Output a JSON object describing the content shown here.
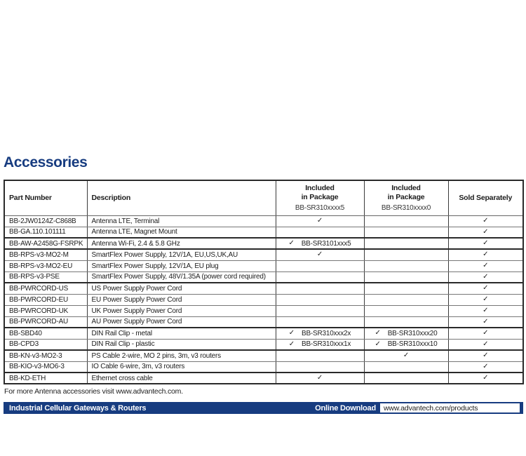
{
  "page": {
    "title": "Accessories",
    "footnote": "For more Antenna accessories visit www.advantech.com.",
    "colors": {
      "navy": "#173c80",
      "border_dark": "#2a2a2a",
      "border_light": "#777777"
    },
    "icons": {
      "check": "✓"
    }
  },
  "footer_bar": {
    "left_label": "Industrial Cellular Gateways & Routers",
    "download_label": "Online Download",
    "download_url": "www.advantech.com/products"
  },
  "table": {
    "headers": {
      "part_number": "Part Number",
      "description": "Description",
      "included1_line1": "Included",
      "included1_line2": "in Package",
      "included1_model": "BB-SR310xxxx5",
      "included2_line1": "Included",
      "included2_line2": "in Package",
      "included2_model": "BB-SR310xxxx0",
      "sold_separately": "Sold Separately"
    },
    "rows": [
      {
        "part": "BB-2JW0124Z-C868B",
        "desc": "Antenna LTE, Terminal",
        "pkg5_check": true,
        "pkg5_label": "",
        "pkg0_check": false,
        "pkg0_label": "",
        "sold_check": true,
        "group_end": false
      },
      {
        "part": "BB-GA.110.101111",
        "desc": "Antenna LTE, Magnet Mount",
        "pkg5_check": false,
        "pkg5_label": "",
        "pkg0_check": false,
        "pkg0_label": "",
        "sold_check": true,
        "group_end": true
      },
      {
        "part": "BB-AW-A2458G-FSRPK",
        "desc": "Antenna Wi-Fi, 2.4 & 5.8 GHz",
        "pkg5_check": true,
        "pkg5_label": "BB-SR3101xxx5",
        "pkg0_check": false,
        "pkg0_label": "",
        "sold_check": true,
        "group_end": true
      },
      {
        "part": "BB-RPS-v3-MO2-M",
        "desc": "SmartFlex Power Supply, 12V/1A, EU,US,UK,AU",
        "pkg5_check": true,
        "pkg5_label": "",
        "pkg0_check": false,
        "pkg0_label": "",
        "sold_check": true,
        "group_end": false
      },
      {
        "part": "BB-RPS-v3-MO2-EU",
        "desc": "SmartFlex Power Supply, 12V/1A, EU plug",
        "pkg5_check": false,
        "pkg5_label": "",
        "pkg0_check": false,
        "pkg0_label": "",
        "sold_check": true,
        "group_end": false
      },
      {
        "part": "BB-RPS-v3-PSE",
        "desc": "SmartFlex Power Supply, 48V/1.35A (power cord required)",
        "pkg5_check": false,
        "pkg5_label": "",
        "pkg0_check": false,
        "pkg0_label": "",
        "sold_check": true,
        "group_end": true
      },
      {
        "part": "BB-PWRCORD-US",
        "desc": "US Power Supply Power Cord",
        "pkg5_check": false,
        "pkg5_label": "",
        "pkg0_check": false,
        "pkg0_label": "",
        "sold_check": true,
        "group_end": false
      },
      {
        "part": "BB-PWRCORD-EU",
        "desc": "EU Power Supply Power Cord",
        "pkg5_check": false,
        "pkg5_label": "",
        "pkg0_check": false,
        "pkg0_label": "",
        "sold_check": true,
        "group_end": false
      },
      {
        "part": "BB-PWRCORD-UK",
        "desc": "UK Power Supply Power Cord",
        "pkg5_check": false,
        "pkg5_label": "",
        "pkg0_check": false,
        "pkg0_label": "",
        "sold_check": true,
        "group_end": false
      },
      {
        "part": "BB-PWRCORD-AU",
        "desc": "AU Power Supply Power Cord",
        "pkg5_check": false,
        "pkg5_label": "",
        "pkg0_check": false,
        "pkg0_label": "",
        "sold_check": true,
        "group_end": true
      },
      {
        "part": "BB-SBD40",
        "desc": "DIN Rail Clip - metal",
        "pkg5_check": true,
        "pkg5_label": "BB-SR310xxx2x",
        "pkg0_check": true,
        "pkg0_label": "BB-SR310xxx20",
        "sold_check": true,
        "group_end": false
      },
      {
        "part": "BB-CPD3",
        "desc": "DIN Rail Clip - plastic",
        "pkg5_check": true,
        "pkg5_label": "BB-SR310xxx1x",
        "pkg0_check": true,
        "pkg0_label": "BB-SR310xxx10",
        "sold_check": true,
        "group_end": true
      },
      {
        "part": "BB-KN-v3-MO2-3",
        "desc": "PS Cable 2-wire, MO 2 pins, 3m, v3 routers",
        "pkg5_check": false,
        "pkg5_label": "",
        "pkg0_check": true,
        "pkg0_label": "",
        "sold_check": true,
        "group_end": false
      },
      {
        "part": "BB-KIO-v3-MO6-3",
        "desc": "IO Cable 6-wire, 3m, v3 routers",
        "pkg5_check": false,
        "pkg5_label": "",
        "pkg0_check": false,
        "pkg0_label": "",
        "sold_check": true,
        "group_end": true
      },
      {
        "part": "BB-KD-ETH",
        "desc": "Ethernet cross cable",
        "pkg5_check": true,
        "pkg5_label": "",
        "pkg0_check": false,
        "pkg0_label": "",
        "sold_check": true,
        "group_end": false
      }
    ]
  }
}
